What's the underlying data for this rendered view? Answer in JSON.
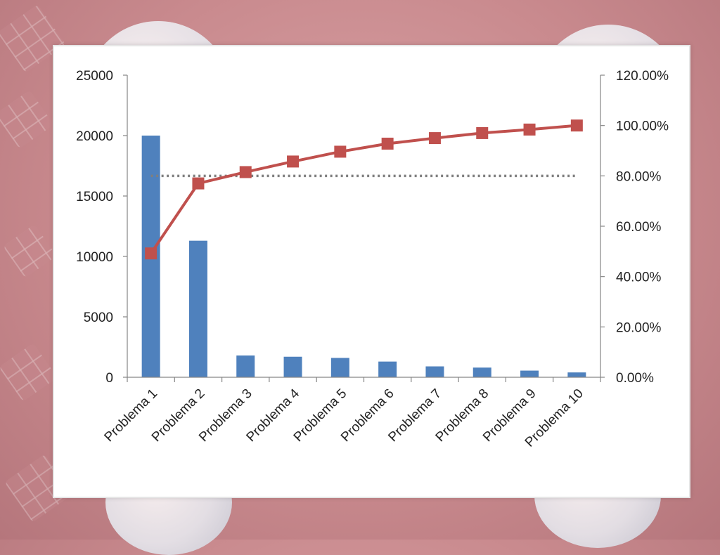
{
  "chart_data": {
    "type": "bar",
    "title": "",
    "xlabel": "",
    "ylabel": "",
    "categories": [
      "Problema 1",
      "Problema 2",
      "Problema 3",
      "Problema 4",
      "Problema 5",
      "Problema 6",
      "Problema 7",
      "Problema 8",
      "Problema 9",
      "Problema 10"
    ],
    "series": [
      {
        "type": "bar",
        "axis": "left",
        "values": [
          20000,
          11300,
          1800,
          1700,
          1600,
          1300,
          900,
          800,
          550,
          400
        ],
        "color": "#4f81bd"
      },
      {
        "type": "line",
        "axis": "right",
        "values": [
          49.2,
          77.0,
          81.5,
          85.7,
          89.6,
          92.8,
          95.0,
          97.0,
          98.4,
          100.0
        ],
        "color": "#c0504d",
        "marker": "square"
      }
    ],
    "reference_line": {
      "axis": "right",
      "value": 80.0,
      "style": "dotted",
      "color": "#7f7f7f"
    },
    "left_axis": {
      "ylim": [
        0,
        25000
      ],
      "ticks": [
        "0",
        "5000",
        "10000",
        "15000",
        "20000",
        "25000"
      ]
    },
    "right_axis": {
      "ylim": [
        0,
        120
      ],
      "ticks": [
        "0.00%",
        "20.00%",
        "40.00%",
        "60.00%",
        "80.00%",
        "100.00%",
        "120.00%"
      ]
    },
    "grid": false,
    "legend": "none"
  }
}
